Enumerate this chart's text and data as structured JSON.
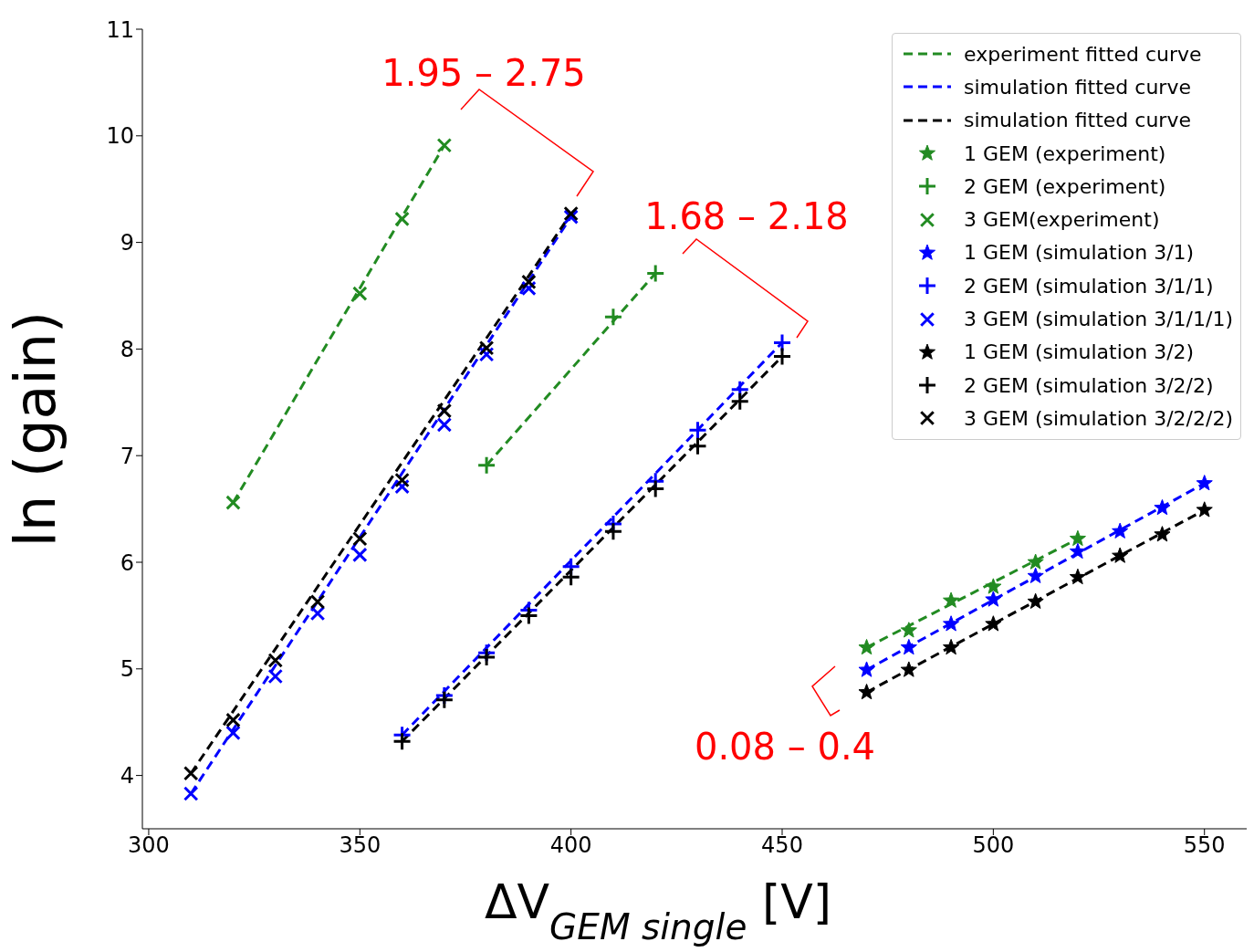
{
  "chart_data": {
    "type": "scatter",
    "xlabel": "ΔV$_{GEM single}$ [V]",
    "ylabel": "ln (gain)",
    "xlim": [
      298.5,
      560
    ],
    "xticks": [
      300,
      350,
      400,
      450,
      500,
      550
    ],
    "ylim": [
      3.5,
      11
    ],
    "yticks": [
      4,
      5,
      6,
      7,
      8,
      9,
      10,
      11
    ],
    "grid": false,
    "legend": "top right",
    "series": [
      {
        "type": "line",
        "name": "experiment fitted curve",
        "color": "#228b22",
        "line_style": "dashed",
        "marker": "none",
        "x": [
          320,
          370
        ],
        "values": [
          6.56,
          9.91
        ]
      },
      {
        "type": "line",
        "name": "simulation fitted curve",
        "color": "#0000ff",
        "line_style": "dashed",
        "marker": "none",
        "x": [
          310,
          400
        ],
        "values": [
          3.83,
          9.24
        ]
      },
      {
        "type": "line",
        "name": "simulation fitted curve",
        "color": "#000000",
        "line_style": "dashed",
        "marker": "none",
        "x": [
          310,
          400
        ],
        "values": [
          4.02,
          9.27
        ]
      },
      {
        "type": "line",
        "color": "#228b22",
        "line_style": "dashed",
        "marker": "none",
        "x": [
          380,
          420
        ],
        "values": [
          6.91,
          8.71
        ]
      },
      {
        "type": "line",
        "color": "#228b22",
        "line_style": "dashed",
        "marker": "none",
        "x": [
          470,
          520
        ],
        "values": [
          5.2,
          6.22
        ]
      },
      {
        "type": "line",
        "color": "#0000ff",
        "line_style": "dashed",
        "marker": "none",
        "x": [
          360,
          450
        ],
        "values": [
          4.38,
          8.06
        ]
      },
      {
        "type": "line",
        "color": "#0000ff",
        "line_style": "dashed",
        "marker": "none",
        "x": [
          470,
          550
        ],
        "values": [
          4.99,
          6.74
        ]
      },
      {
        "type": "line",
        "color": "#000000",
        "line_style": "dashed",
        "marker": "none",
        "x": [
          360,
          450
        ],
        "values": [
          4.32,
          7.93
        ]
      },
      {
        "type": "line",
        "color": "#000000",
        "line_style": "dashed",
        "marker": "none",
        "x": [
          470,
          550
        ],
        "values": [
          4.78,
          6.49
        ]
      },
      {
        "name": "1 GEM (experiment)",
        "color": "#228b22",
        "marker": "star",
        "x": [
          470,
          480,
          490,
          500,
          510,
          520
        ],
        "values": [
          5.2,
          5.36,
          5.64,
          5.77,
          6.0,
          6.22
        ]
      },
      {
        "name": "2 GEM (experiment)",
        "color": "#228b22",
        "marker": "plus",
        "x": [
          380,
          410,
          420
        ],
        "values": [
          6.91,
          8.3,
          8.71
        ]
      },
      {
        "name": "3 GEM(experiment)",
        "color": "#228b22",
        "marker": "cross",
        "x": [
          320,
          350,
          360,
          370
        ],
        "values": [
          6.56,
          8.52,
          9.22,
          9.91
        ]
      },
      {
        "name": "1 GEM (simulation 3/1)",
        "color": "#0000ff",
        "marker": "star",
        "x": [
          470,
          480,
          490,
          500,
          510,
          520,
          530,
          540,
          550
        ],
        "values": [
          4.99,
          5.2,
          5.42,
          5.65,
          5.87,
          6.1,
          6.29,
          6.51,
          6.74
        ]
      },
      {
        "name": "2 GEM (simulation 3/1/1)",
        "color": "#0000ff",
        "marker": "plus",
        "x": [
          360,
          370,
          380,
          390,
          400,
          410,
          420,
          430,
          440,
          450
        ],
        "values": [
          4.38,
          4.75,
          5.15,
          5.55,
          5.96,
          6.36,
          6.76,
          7.24,
          7.62,
          8.06
        ]
      },
      {
        "name": "3 GEM (simulation 3/1/1/1)",
        "color": "#0000ff",
        "marker": "cross",
        "x": [
          310,
          320,
          330,
          340,
          350,
          360,
          370,
          380,
          390,
          400
        ],
        "values": [
          3.83,
          4.4,
          4.93,
          5.52,
          6.07,
          6.71,
          7.29,
          7.95,
          8.57,
          9.24
        ]
      },
      {
        "name": "1 GEM (simulation 3/2)",
        "color": "#000000",
        "marker": "star",
        "x": [
          470,
          480,
          490,
          500,
          510,
          520,
          530,
          540,
          550
        ],
        "values": [
          4.78,
          4.99,
          5.2,
          5.42,
          5.63,
          5.86,
          6.06,
          6.26,
          6.49
        ]
      },
      {
        "name": "2 GEM (simulation 3/2/2)",
        "color": "#000000",
        "marker": "plus",
        "x": [
          360,
          370,
          380,
          390,
          400,
          410,
          420,
          430,
          440,
          450
        ],
        "values": [
          4.32,
          4.71,
          5.11,
          5.5,
          5.86,
          6.29,
          6.69,
          7.09,
          7.51,
          7.93
        ]
      },
      {
        "name": "3 GEM (simulation 3/2/2/2)",
        "color": "#000000",
        "marker": "cross",
        "x": [
          310,
          320,
          330,
          340,
          350,
          360,
          370,
          380,
          390,
          400
        ],
        "values": [
          4.02,
          4.52,
          5.08,
          5.63,
          6.22,
          6.77,
          7.42,
          8.01,
          8.63,
          9.27
        ]
      }
    ],
    "annotations": [
      "1.95 – 2.75",
      "1.68 – 2.18",
      "0.08 – 0.4"
    ]
  }
}
